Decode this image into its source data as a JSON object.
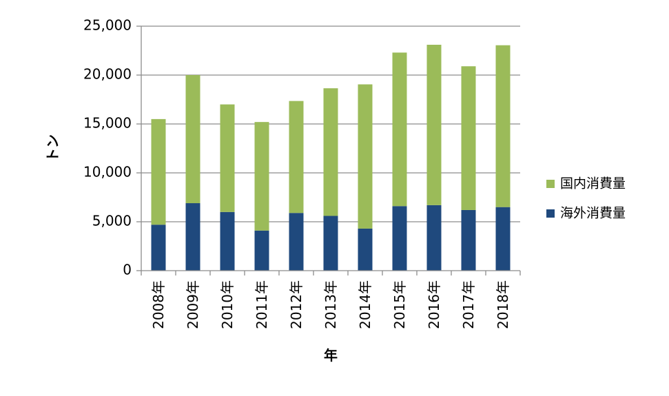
{
  "chart_data": {
    "type": "bar",
    "stacked": true,
    "categories": [
      "2008年",
      "2009年",
      "2010年",
      "2011年",
      "2012年",
      "2013年",
      "2014年",
      "2015年",
      "2016年",
      "2017年",
      "2018年"
    ],
    "series": [
      {
        "name": "海外消費量",
        "color": "#1f497d",
        "values": [
          4700,
          6900,
          6000,
          4100,
          5900,
          5600,
          4300,
          6600,
          6700,
          6200,
          6500
        ]
      },
      {
        "name": "国内消費量",
        "color": "#9bbb59",
        "values": [
          10800,
          13100,
          11000,
          11100,
          11450,
          13050,
          14750,
          15700,
          16400,
          14700,
          16550
        ]
      }
    ],
    "title": "",
    "xlabel": "年",
    "ylabel": "トン",
    "ylim": [
      0,
      25000
    ],
    "yticks": [
      0,
      5000,
      10000,
      15000,
      20000,
      25000
    ],
    "ytick_labels": [
      "0",
      "5,000",
      "10,000",
      "15,000",
      "20,000",
      "25,000"
    ],
    "grid": true,
    "legend": {
      "placement": "right",
      "order": [
        "国内消費量",
        "海外消費量"
      ]
    }
  }
}
